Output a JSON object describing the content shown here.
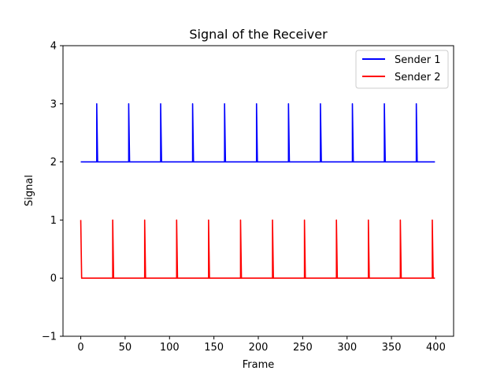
{
  "chart_data": {
    "type": "line",
    "title": "Signal of the Receiver",
    "xlabel": "Frame",
    "ylabel": "Signal",
    "xlim": [
      -20,
      420
    ],
    "ylim": [
      -1,
      4
    ],
    "x_ticks": [
      0,
      50,
      100,
      150,
      200,
      250,
      300,
      350,
      400
    ],
    "y_ticks": [
      -1,
      0,
      1,
      2,
      3,
      4
    ],
    "x_tick_labels": [
      "0",
      "50",
      "100",
      "150",
      "200",
      "250",
      "300",
      "350",
      "400"
    ],
    "y_tick_labels": [
      "−1",
      "0",
      "1",
      "2",
      "3",
      "4"
    ],
    "grid": false,
    "legend": "top-right",
    "series": [
      {
        "name": "Sender 1",
        "color": "#0000ff",
        "x_range": [
          0,
          399
        ],
        "baseline": 2,
        "peak": 3,
        "peak_frames": [
          18,
          54,
          90,
          126,
          162,
          198,
          234,
          270,
          306,
          342,
          378
        ]
      },
      {
        "name": "Sender 2",
        "color": "#ff0000",
        "x_range": [
          0,
          399
        ],
        "baseline": 0,
        "peak": 1,
        "peak_frames": [
          0,
          36,
          72,
          108,
          144,
          180,
          216,
          252,
          288,
          324,
          360,
          396
        ]
      }
    ]
  }
}
